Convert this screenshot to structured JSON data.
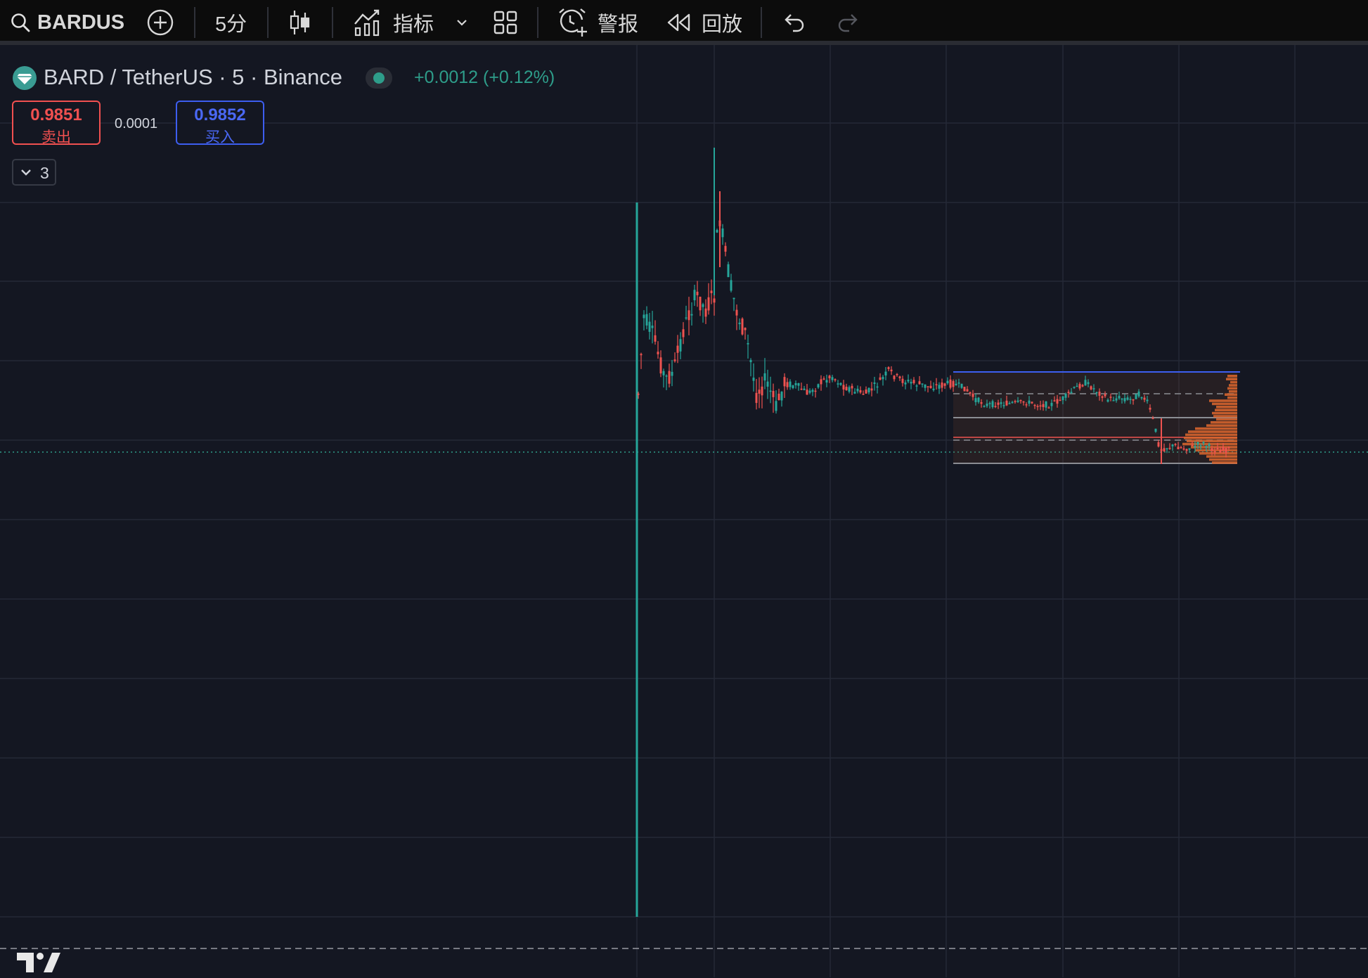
{
  "toolbar": {
    "symbol": "BARDUS",
    "interval": "5分",
    "indicators_label": "指标",
    "alert_label": "警报",
    "replay_label": "回放"
  },
  "legend": {
    "title": "BARD / TetherUS · 5 · Binance",
    "change": "+0.0012 (+0.12%)"
  },
  "trade": {
    "sell_price": "0.9851",
    "sell_label": "卖出",
    "spread": "0.0001",
    "buy_price": "0.9852",
    "buy_label": "买入"
  },
  "indicators_count": "3",
  "colors": {
    "background": "#141722",
    "up": "#26a69a",
    "down": "#ef5350",
    "sell": "#f15050",
    "buy": "#4a68f5",
    "volume_profile": "#d9652e"
  },
  "branding": "TV-logo"
}
